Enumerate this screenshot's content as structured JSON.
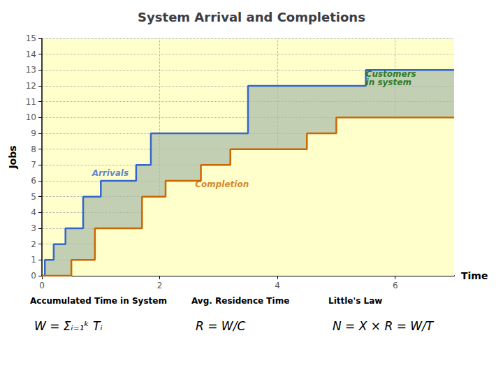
{
  "chart_data": {
    "type": "step",
    "title": "System Arrival and Completions",
    "xlabel": "Time",
    "ylabel": "Jobs",
    "xlim": [
      0,
      7.0
    ],
    "ylim": [
      0,
      15
    ],
    "xticks": [
      0,
      2,
      4,
      6
    ],
    "yticks": [
      0,
      1,
      2,
      3,
      4,
      5,
      6,
      7,
      8,
      9,
      10,
      11,
      12,
      13,
      14,
      15
    ],
    "grid": true,
    "series": [
      {
        "color": "#3366cc",
        "x": [
          0.0,
          0.05,
          0.2,
          0.4,
          0.7,
          1.0,
          1.6,
          1.85,
          2.5,
          3.5,
          4.0,
          5.5,
          6.3,
          7.0
        ],
        "values": [
          0,
          1,
          2,
          3,
          5,
          6,
          7,
          9,
          9,
          12,
          12,
          13,
          13,
          13
        ]
      },
      {
        "color": "#cc6600",
        "x": [
          0.0,
          0.5,
          0.5,
          0.9,
          0.9,
          1.7,
          1.7,
          2.1,
          2.1,
          2.4,
          2.4,
          2.7,
          2.7,
          3.2,
          3.2,
          3.7,
          3.7,
          4.5,
          4.5,
          5.0,
          5.0,
          6.1,
          6.1,
          7.0
        ],
        "values": [
          0,
          0,
          1,
          1,
          3,
          3,
          5,
          5,
          6,
          6,
          6,
          6,
          7,
          7,
          8,
          8,
          8,
          8,
          9,
          9,
          10,
          10,
          10,
          10
        ]
      }
    ],
    "annotations": [
      {
        "text": "Arrivals",
        "x": 0.85,
        "y": 6.5,
        "color": "#3366cc"
      },
      {
        "text": "Completion",
        "x": 2.6,
        "y": 5.8,
        "color": "#cc6600"
      },
      {
        "text": "Customers\nin system",
        "x": 5.5,
        "y": 12.5,
        "color": "#006600"
      }
    ],
    "footnotes": [
      [
        "Accumulated Time in System",
        "W = Σᵢ₌₁ᵏ Tᵢ"
      ],
      [
        "Avg. Residence Time",
        "R = W/C"
      ],
      [
        "Little's Law",
        "N = X × R = W/T"
      ]
    ]
  }
}
